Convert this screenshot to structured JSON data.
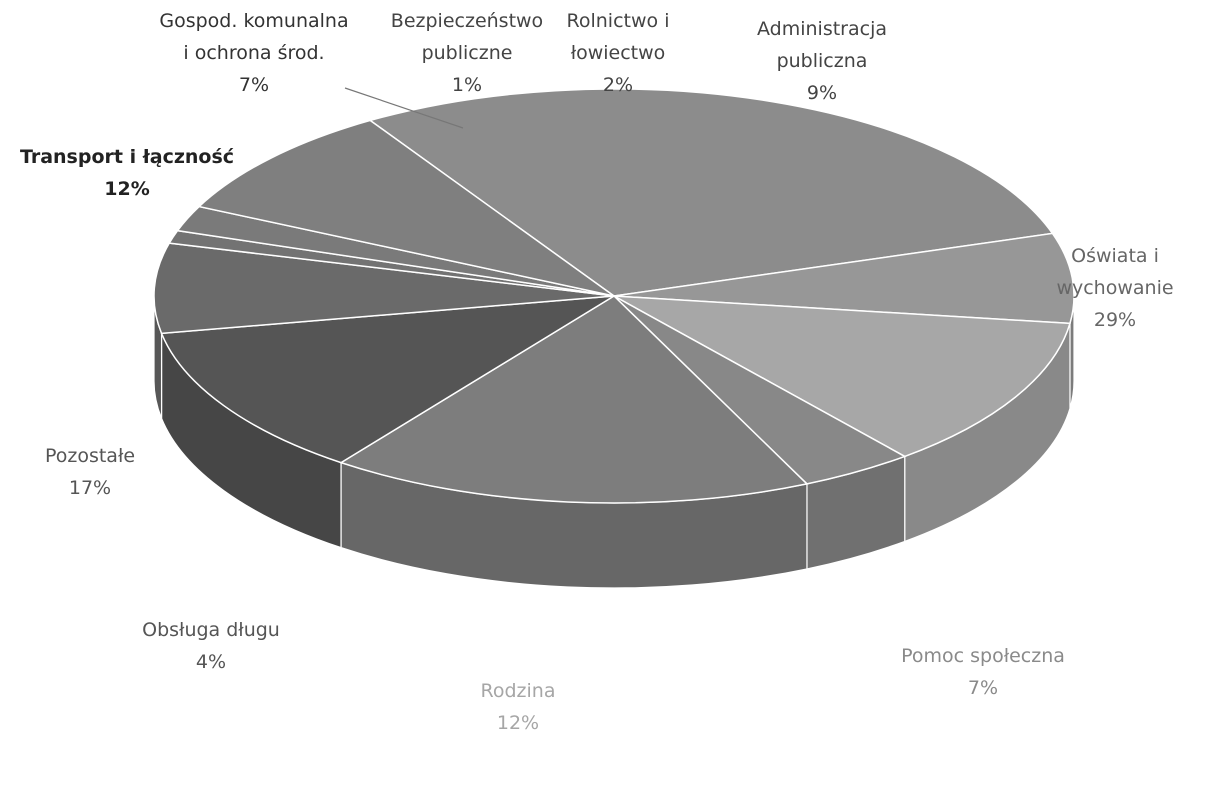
{
  "chart_data": {
    "type": "pie",
    "style": "3d",
    "title": "",
    "legend": "none",
    "slices": [
      {
        "label": "Oświata i wychowanie",
        "value": 29,
        "value_label": "29%",
        "color": "#8c8c8c",
        "label_color": "#666666"
      },
      {
        "label": "Pomoc społeczna",
        "value": 7,
        "value_label": "7%",
        "color": "#979797",
        "label_color": "#8a8a8a"
      },
      {
        "label": "Rodzina",
        "value": 12,
        "value_label": "12%",
        "color": "#a7a7a7",
        "label_color": "#a6a6a6"
      },
      {
        "label": "Obsługa długu",
        "value": 4,
        "value_label": "4%",
        "color": "#888888",
        "label_color": "#555555"
      },
      {
        "label": "Pozostałe",
        "value": 17,
        "value_label": "17%",
        "color": "#7d7d7d",
        "label_color": "#555555"
      },
      {
        "label": "Transport i łączność",
        "value": 12,
        "value_label": "12%",
        "color": "#555555",
        "label_color": "#222222"
      },
      {
        "label": "Gospod. komunalna i ochrona środ.",
        "value": 7,
        "value_label": "7%",
        "color": "#6a6a6a",
        "label_color": "#333333"
      },
      {
        "label": "Bezpieczeństwo publiczne",
        "value": 1,
        "value_label": "1%",
        "color": "#737373",
        "label_color": "#444444"
      },
      {
        "label": "Rolnictwo i łowiectwo",
        "value": 2,
        "value_label": "2%",
        "color": "#7a7a7a",
        "label_color": "#444444"
      },
      {
        "label": "Administracja publiczna",
        "value": 9,
        "value_label": "9%",
        "color": "#7f7f7f",
        "label_color": "#444444"
      }
    ]
  }
}
